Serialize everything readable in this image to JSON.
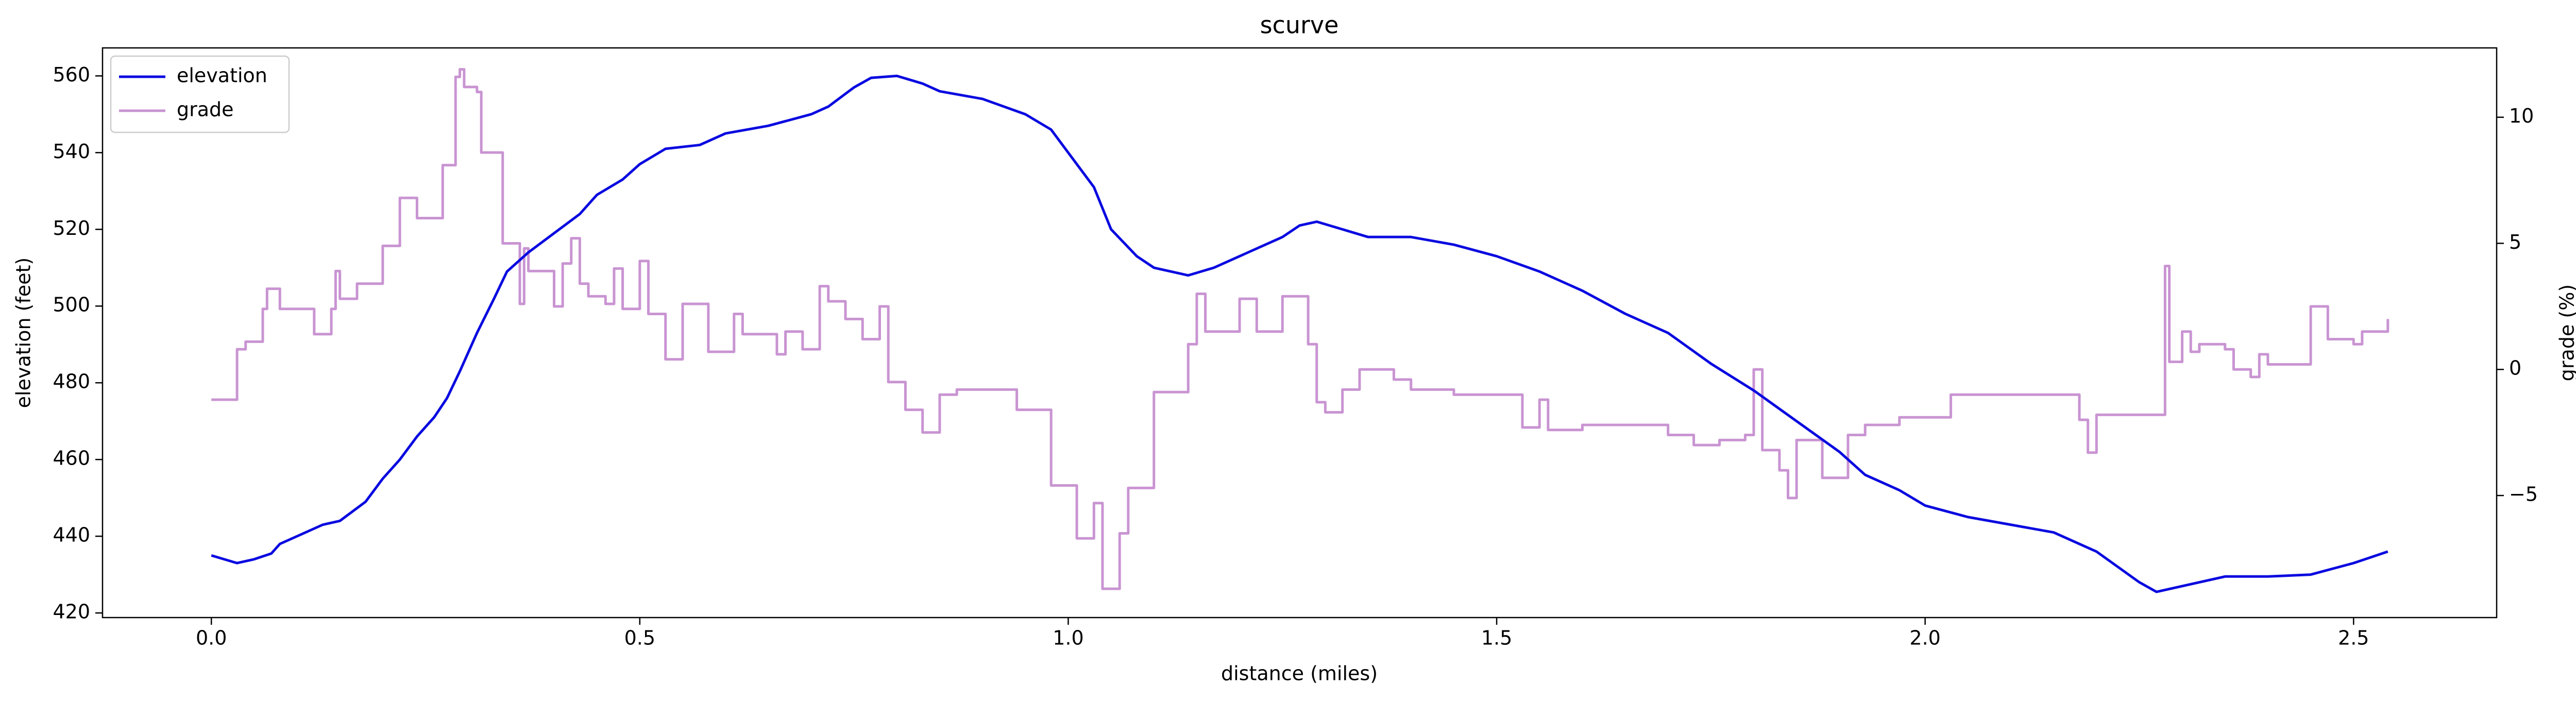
{
  "chart_data": {
    "type": "line",
    "title": "scurve",
    "xlabel": "distance (miles)",
    "ylabel": "elevation (feet)",
    "y2label": "grade (%)",
    "xlim": [
      -0.127,
      2.667
    ],
    "ylim": [
      418.8,
      567.3
    ],
    "y2lim": [
      -9.84,
      12.75
    ],
    "xticks": [
      {
        "value": 0,
        "label": "0.0"
      },
      0.5,
      {
        "value": 1,
        "label": "1.0"
      },
      1.5,
      {
        "value": 2,
        "label": "2.0"
      },
      2.5
    ],
    "yticks": [
      420,
      440,
      460,
      480,
      500,
      520,
      540,
      560
    ],
    "y2ticks": [
      {
        "value": -5,
        "label": "−5"
      },
      0,
      5,
      10
    ],
    "grid": false,
    "legend": "upper left",
    "series": [
      {
        "name": "elevation",
        "color": "#0a0ae0",
        "axis": "y",
        "step": false,
        "x": [
          0,
          0.03,
          0.05,
          0.07,
          0.08,
          0.1,
          0.13,
          0.15,
          0.18,
          0.2,
          0.22,
          0.24,
          0.26,
          0.275,
          0.29,
          0.31,
          0.33,
          0.345,
          0.37,
          0.4,
          0.43,
          0.45,
          0.48,
          0.5,
          0.53,
          0.57,
          0.6,
          0.65,
          0.7,
          0.72,
          0.75,
          0.77,
          0.8,
          0.83,
          0.85,
          0.9,
          0.95,
          0.98,
          1.0,
          1.03,
          1.05,
          1.08,
          1.1,
          1.14,
          1.17,
          1.22,
          1.25,
          1.27,
          1.29,
          1.32,
          1.35,
          1.4,
          1.45,
          1.5,
          1.55,
          1.6,
          1.65,
          1.7,
          1.75,
          1.8,
          1.85,
          1.9,
          1.93,
          1.97,
          2.0,
          2.05,
          2.1,
          2.15,
          2.2,
          2.25,
          2.27,
          2.3,
          2.35,
          2.4,
          2.45,
          2.5,
          2.54
        ],
        "values": [
          435,
          433,
          434,
          435.5,
          438,
          440,
          443,
          444,
          449,
          455,
          460,
          466,
          471,
          476,
          483,
          493,
          502,
          509,
          514,
          519,
          524,
          529,
          533,
          537,
          541,
          542,
          545,
          547,
          550,
          552,
          557,
          559.5,
          560,
          558,
          556,
          554,
          550,
          546,
          540,
          531,
          520,
          513,
          510,
          508,
          510,
          515,
          518,
          521,
          522,
          520,
          518,
          518,
          516,
          513,
          509,
          504,
          498,
          493,
          485,
          478,
          470,
          462,
          456,
          452,
          448,
          445,
          443,
          441,
          436,
          428,
          425.5,
          427,
          429.5,
          429.5,
          430,
          433,
          436
        ]
      },
      {
        "name": "grade",
        "color": "#c994d2",
        "axis": "y2",
        "step": true,
        "x": [
          0,
          0.03,
          0.04,
          0.06,
          0.065,
          0.08,
          0.12,
          0.14,
          0.145,
          0.15,
          0.17,
          0.2,
          0.22,
          0.24,
          0.27,
          0.285,
          0.29,
          0.295,
          0.31,
          0.315,
          0.34,
          0.36,
          0.365,
          0.37,
          0.4,
          0.41,
          0.42,
          0.43,
          0.44,
          0.46,
          0.47,
          0.48,
          0.5,
          0.51,
          0.53,
          0.55,
          0.58,
          0.61,
          0.62,
          0.66,
          0.67,
          0.69,
          0.71,
          0.72,
          0.74,
          0.76,
          0.78,
          0.79,
          0.81,
          0.83,
          0.85,
          0.87,
          0.94,
          0.98,
          1.01,
          1.03,
          1.04,
          1.06,
          1.07,
          1.1,
          1.14,
          1.15,
          1.16,
          1.2,
          1.22,
          1.25,
          1.28,
          1.29,
          1.3,
          1.32,
          1.34,
          1.38,
          1.4,
          1.45,
          1.5,
          1.53,
          1.55,
          1.56,
          1.6,
          1.7,
          1.73,
          1.76,
          1.79,
          1.8,
          1.81,
          1.83,
          1.84,
          1.85,
          1.88,
          1.91,
          1.93,
          1.97,
          2.03,
          2.18,
          2.19,
          2.2,
          2.27,
          2.28,
          2.285,
          2.3,
          2.31,
          2.32,
          2.35,
          2.36,
          2.38,
          2.39,
          2.4,
          2.45,
          2.47,
          2.5,
          2.51,
          2.54
        ],
        "values": [
          -1.2,
          0.8,
          1.1,
          2.4,
          3.2,
          2.4,
          1.4,
          2.4,
          3.9,
          2.8,
          3.4,
          4.9,
          6.8,
          6.0,
          8.1,
          11.6,
          11.9,
          11.2,
          11.0,
          8.6,
          5.0,
          2.6,
          4.8,
          3.9,
          2.5,
          4.2,
          5.2,
          3.4,
          2.9,
          2.6,
          4.0,
          2.4,
          4.3,
          2.2,
          0.4,
          2.6,
          0.7,
          2.2,
          1.4,
          0.6,
          1.5,
          0.8,
          3.3,
          2.7,
          2.0,
          1.2,
          2.5,
          -0.5,
          -1.6,
          -2.5,
          -1.0,
          -0.8,
          -1.6,
          -4.6,
          -6.7,
          -5.3,
          -8.7,
          -6.5,
          -4.7,
          -0.9,
          1.0,
          3.0,
          1.5,
          2.8,
          1.5,
          2.9,
          1.0,
          -1.3,
          -1.7,
          -0.8,
          0.0,
          -0.4,
          -0.8,
          -1.0,
          -1.0,
          -2.3,
          -1.2,
          -2.4,
          -2.2,
          -2.6,
          -3.0,
          -2.8,
          -2.6,
          0.0,
          -3.2,
          -4.0,
          -5.1,
          -2.8,
          -4.3,
          -2.6,
          -2.2,
          -1.9,
          -1.0,
          -2.0,
          -3.3,
          -1.8,
          -1.8,
          4.1,
          0.3,
          1.5,
          0.7,
          1.0,
          0.8,
          0.0,
          -0.3,
          0.6,
          0.2,
          2.5,
          1.2,
          1.0,
          1.5,
          2.0
        ]
      }
    ]
  }
}
